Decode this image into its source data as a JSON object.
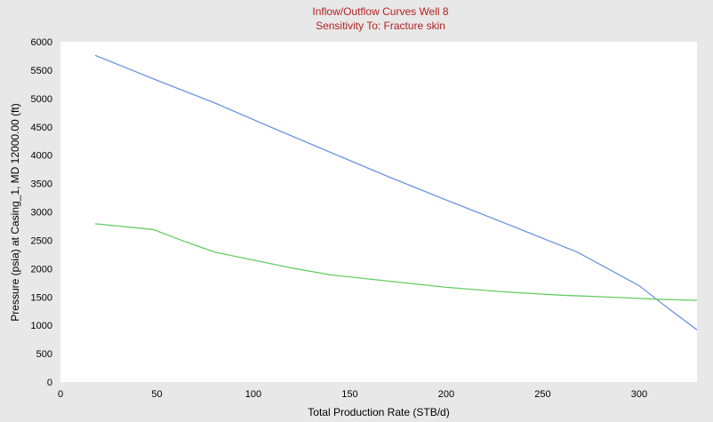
{
  "chart_data": {
    "type": "line",
    "title": "Inflow/Outflow Curves Well 8",
    "subtitle": "Sensitivity To: Fracture skin",
    "xlabel": "Total Production Rate (STB/d)",
    "ylabel": "Pressure (psia) at Casing_1, MD 12000.00 (ft)",
    "xlim": [
      0,
      330
    ],
    "ylim": [
      0,
      6000
    ],
    "xticks": [
      0,
      50,
      100,
      150,
      200,
      250,
      300
    ],
    "yticks": [
      0,
      500,
      1000,
      1500,
      2000,
      2500,
      3000,
      3500,
      4000,
      4500,
      5000,
      5500,
      6000
    ],
    "grid": false,
    "legend": "none",
    "series": [
      {
        "color": "#6f94e0",
        "points": [
          [
            18,
            5760
          ],
          [
            50,
            5320
          ],
          [
            80,
            4920
          ],
          [
            110,
            4480
          ],
          [
            140,
            4050
          ],
          [
            170,
            3620
          ],
          [
            200,
            3210
          ],
          [
            235,
            2740
          ],
          [
            268,
            2290
          ],
          [
            300,
            1700
          ],
          [
            315,
            1300
          ],
          [
            330,
            920
          ]
        ]
      },
      {
        "color": "#66cc66",
        "points": [
          [
            18,
            2790
          ],
          [
            48,
            2690
          ],
          [
            65,
            2470
          ],
          [
            80,
            2290
          ],
          [
            100,
            2150
          ],
          [
            120,
            2010
          ],
          [
            140,
            1890
          ],
          [
            170,
            1780
          ],
          [
            200,
            1670
          ],
          [
            230,
            1590
          ],
          [
            260,
            1530
          ],
          [
            290,
            1490
          ],
          [
            310,
            1460
          ],
          [
            330,
            1440
          ]
        ]
      }
    ]
  }
}
